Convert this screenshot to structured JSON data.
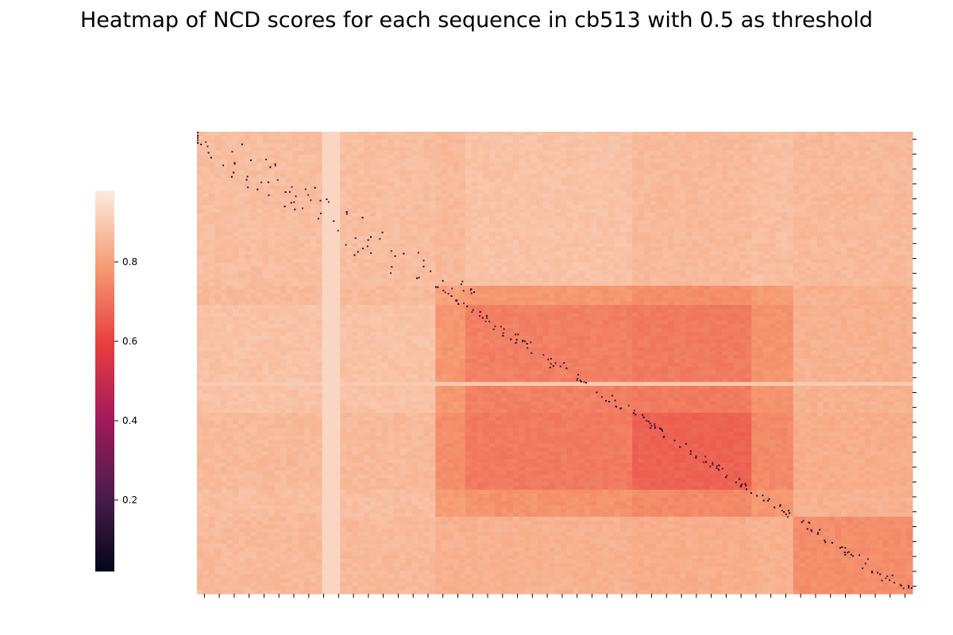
{
  "chart_data": {
    "type": "heatmap",
    "title": "Heatmap of NCD scores for each sequence in cb513 with 0.5 as threshold",
    "xlabel": "",
    "ylabel": "",
    "colorbar": {
      "label": "",
      "range": [
        0.02,
        0.98
      ],
      "ticks": [
        0.2,
        0.4,
        0.6,
        0.8
      ],
      "tick_labels": [
        "0.2",
        "0.4",
        "0.6",
        "0.8"
      ],
      "colormap": "rocket",
      "colors": [
        "#03051a",
        "#4c1d4b",
        "#a11a5b",
        "#e83f3f",
        "#f69c73",
        "#faebdd"
      ]
    },
    "x_tick_count": 48,
    "y_tick_count": 31,
    "threshold": 0.5,
    "matrix_size": 513,
    "group_boundaries": [
      0.0,
      0.331,
      0.373,
      0.605,
      0.774,
      0.831,
      1.0
    ],
    "block_values": [
      [
        0.87,
        0.86,
        0.88,
        0.86,
        0.87,
        0.86
      ],
      [
        0.86,
        0.8,
        0.78,
        0.76,
        0.79,
        0.84
      ],
      [
        0.88,
        0.78,
        0.73,
        0.72,
        0.77,
        0.84
      ],
      [
        0.86,
        0.76,
        0.72,
        0.67,
        0.75,
        0.83
      ],
      [
        0.87,
        0.79,
        0.77,
        0.75,
        0.78,
        0.84
      ],
      [
        0.86,
        0.84,
        0.84,
        0.83,
        0.84,
        0.76
      ]
    ],
    "sub_groups": [
      0.0,
      0.331,
      0.352,
      0.373,
      0.42,
      0.53,
      0.605,
      0.66,
      0.72,
      0.774,
      0.831,
      0.9,
      1.0
    ],
    "light_strip_row_fraction": 0.544,
    "light_strip_col_fraction": 0.186
  }
}
